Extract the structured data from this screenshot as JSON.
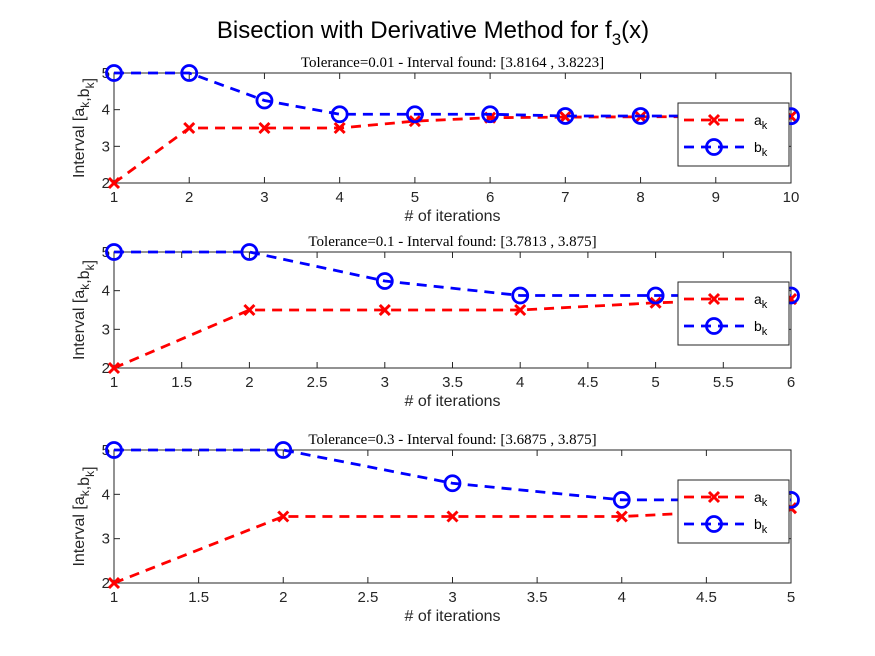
{
  "figure_title": "Bisection with Derivative Method for f",
  "figure_title_sub": "3",
  "figure_title_suffix": "(x)",
  "colors": {
    "a_series": "#ff0000",
    "b_series": "#0000ff",
    "axis": "#262626"
  },
  "chart_data": [
    {
      "type": "line",
      "title": "Tolerance=0.01 - Interval found: [3.8164 , 3.8223]",
      "xlabel": "# of iterations",
      "ylabel": "Interval [a_k,b_k]",
      "xlim": [
        1,
        10
      ],
      "ylim": [
        2,
        5
      ],
      "xticks": [
        "1",
        "2",
        "3",
        "4",
        "5",
        "6",
        "7",
        "8",
        "9",
        "10"
      ],
      "yticks": [
        "2",
        "3",
        "4",
        "5"
      ],
      "legend_position": "right",
      "series": [
        {
          "name": "a",
          "sub": "k",
          "marker": "x",
          "x": [
            1,
            2,
            3,
            4,
            5,
            6,
            7,
            8,
            9,
            10
          ],
          "values": [
            2,
            3.5,
            3.5,
            3.5,
            3.6875,
            3.7813,
            3.7969,
            3.8047,
            3.8125,
            3.8164
          ]
        },
        {
          "name": "b",
          "sub": "k",
          "marker": "o",
          "x": [
            1,
            2,
            3,
            4,
            5,
            6,
            7,
            8,
            9,
            10
          ],
          "values": [
            5,
            5,
            4.25,
            3.875,
            3.875,
            3.875,
            3.8281,
            3.8281,
            3.8281,
            3.8223
          ]
        }
      ]
    },
    {
      "type": "line",
      "title": "Tolerance=0.1 - Interval found: [3.7813 , 3.875]",
      "xlabel": "# of iterations",
      "ylabel": "Interval [a_k,b_k]",
      "xlim": [
        1,
        6
      ],
      "ylim": [
        2,
        5
      ],
      "xticks": [
        "1",
        "1.5",
        "2",
        "2.5",
        "3",
        "3.5",
        "4",
        "4.5",
        "5",
        "5.5",
        "6"
      ],
      "yticks": [
        "2",
        "3",
        "4",
        "5"
      ],
      "legend_position": "right",
      "series": [
        {
          "name": "a",
          "sub": "k",
          "marker": "x",
          "x": [
            1,
            2,
            3,
            4,
            5,
            6
          ],
          "values": [
            2,
            3.5,
            3.5,
            3.5,
            3.6875,
            3.7813
          ]
        },
        {
          "name": "b",
          "sub": "k",
          "marker": "o",
          "x": [
            1,
            2,
            3,
            4,
            5,
            6
          ],
          "values": [
            5,
            5,
            4.25,
            3.875,
            3.875,
            3.875
          ]
        }
      ]
    },
    {
      "type": "line",
      "title": "Tolerance=0.3 - Interval found: [3.6875 , 3.875]",
      "xlabel": "# of iterations",
      "ylabel": "Interval [a_k,b_k]",
      "xlim": [
        1,
        5
      ],
      "ylim": [
        2,
        5
      ],
      "xticks": [
        "1",
        "1.5",
        "2",
        "2.5",
        "3",
        "3.5",
        "4",
        "4.5",
        "5"
      ],
      "yticks": [
        "2",
        "3",
        "4",
        "5"
      ],
      "legend_position": "right",
      "series": [
        {
          "name": "a",
          "sub": "k",
          "marker": "x",
          "x": [
            1,
            2,
            3,
            4,
            5
          ],
          "values": [
            2,
            3.5,
            3.5,
            3.5,
            3.6875
          ]
        },
        {
          "name": "b",
          "sub": "k",
          "marker": "o",
          "x": [
            1,
            2,
            3,
            4,
            5
          ],
          "values": [
            5,
            5,
            4.25,
            3.875,
            3.875
          ]
        }
      ]
    }
  ]
}
